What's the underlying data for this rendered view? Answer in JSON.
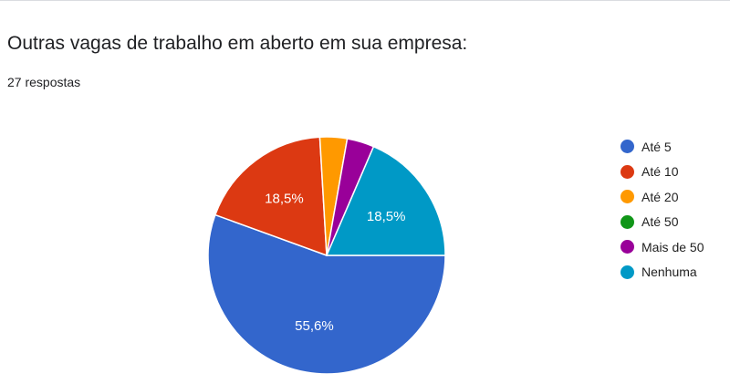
{
  "header": {
    "title": "Outras vagas de trabalho em aberto em sua empresa:",
    "responses": "27 respostas"
  },
  "chart_data": {
    "type": "pie",
    "categories": [
      "Até 5",
      "Até 10",
      "Até 20",
      "Até 50",
      "Mais de 50",
      "Nenhuma"
    ],
    "values": [
      15,
      5,
      1,
      0,
      1,
      5
    ],
    "percent_labels": [
      "55,6%",
      "18,5%",
      "",
      "",
      "",
      "18,5%"
    ],
    "colors": [
      "#3366cc",
      "#dc3912",
      "#ff9900",
      "#109618",
      "#990099",
      "#0099c6"
    ],
    "legend_position": "right"
  }
}
